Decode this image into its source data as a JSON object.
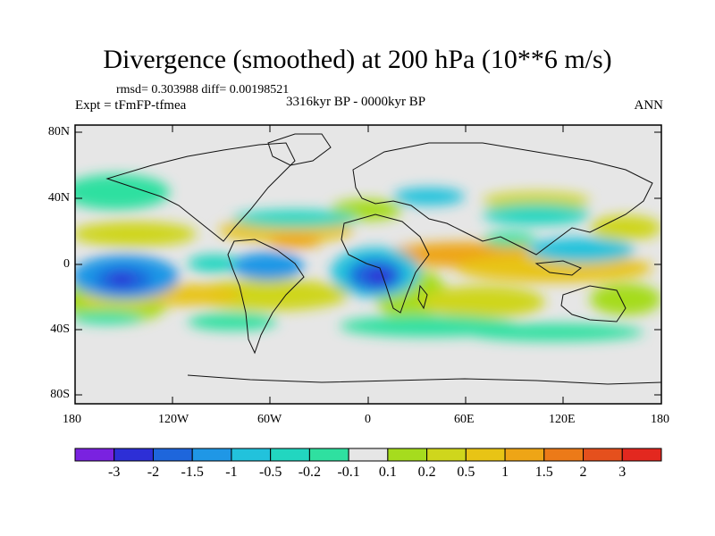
{
  "title": "Divergence (smoothed) at 200 hPa (10**6 m/s)",
  "stats": "rmsd= 0.303988 diff= 0.00198521",
  "expt": "Expt = tFmFP-tfmea",
  "period": "3316kyr BP - 0000kyr BP",
  "season": "ANN",
  "map": {
    "x_labels": [
      "180",
      "120W",
      "60W",
      "0",
      "60E",
      "120E",
      "180"
    ],
    "y_labels": [
      "80N",
      "40N",
      "0",
      "40S",
      "80S"
    ]
  },
  "colorbar": {
    "labels": [
      "-3",
      "-2",
      "-1.5",
      "-1",
      "-0.5",
      "-0.2",
      "-0.1",
      "0.1",
      "0.2",
      "0.5",
      "1",
      "1.5",
      "2",
      "3"
    ],
    "colors": [
      "#7a22e0",
      "#2d2fd6",
      "#1e66dc",
      "#1f97e6",
      "#22c2dc",
      "#22d6c0",
      "#2fe0a0",
      "#e6e6e6",
      "#a6dc1e",
      "#cfd61c",
      "#e8c415",
      "#eea516",
      "#ec7a18",
      "#e5501d",
      "#e3281f"
    ]
  }
}
